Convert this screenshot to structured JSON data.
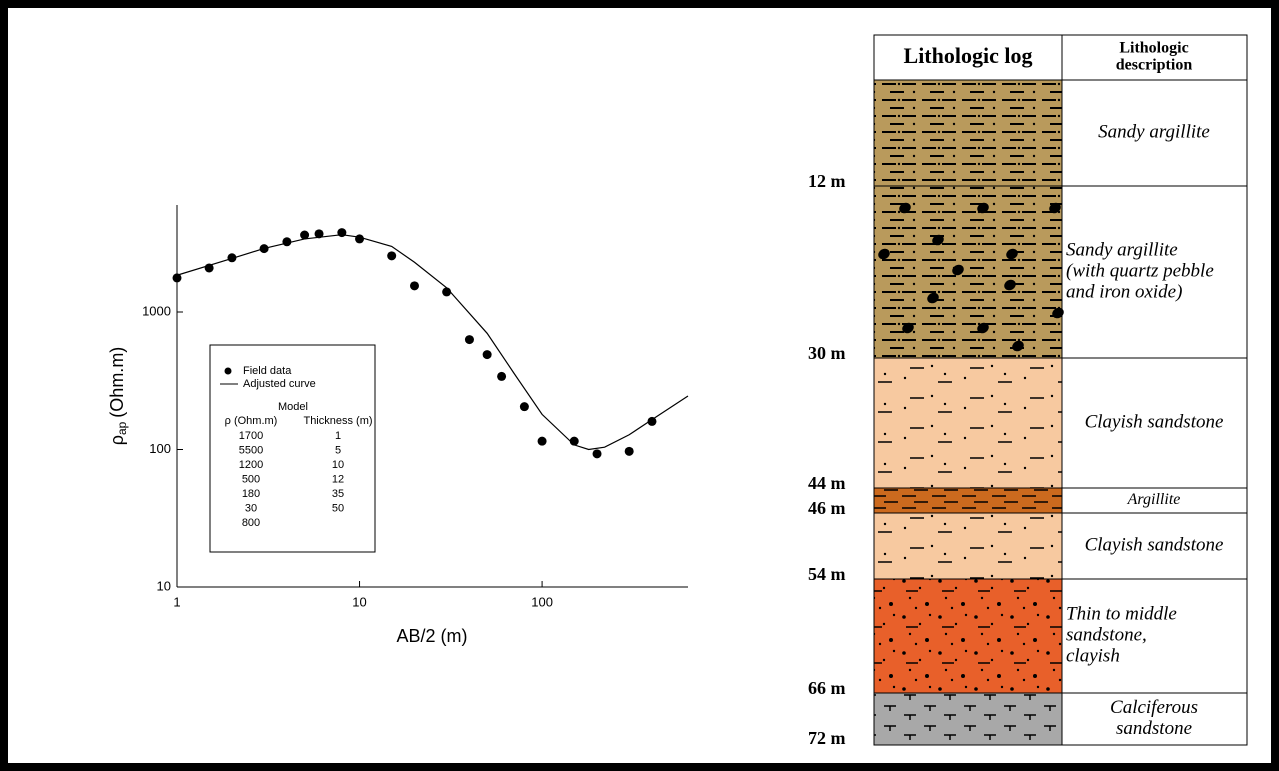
{
  "chart_data": {
    "type": "scatter",
    "x_label": "AB/2 (m)",
    "y_label": {
      "symbol": "ρ",
      "subscript": "ap",
      "unit": "(Ohm.m)"
    },
    "xscale": "log",
    "yscale": "log",
    "xlim": [
      1,
      630
    ],
    "ylim": [
      10,
      6000
    ],
    "xticks": [
      1,
      10,
      100
    ],
    "yticks": [
      10,
      100,
      1000
    ],
    "series": [
      {
        "name": "Field data",
        "type": "scatter",
        "color": "#000000",
        "x": [
          1,
          1.5,
          2,
          3,
          4,
          5,
          6,
          8,
          10,
          15,
          20,
          30,
          40,
          50,
          60,
          80,
          100,
          150,
          200,
          300,
          400
        ],
        "values": [
          1770,
          2090,
          2480,
          2890,
          3240,
          3630,
          3700,
          3780,
          3400,
          2560,
          1550,
          1400,
          630,
          490,
          340,
          205,
          115,
          115,
          93,
          97,
          160
        ]
      },
      {
        "name": "Adjusted curve",
        "type": "line",
        "color": "#000000",
        "x": [
          1,
          2,
          3,
          5,
          8,
          10,
          15,
          20,
          30,
          50,
          70,
          100,
          150,
          180,
          220,
          300,
          400,
          630
        ],
        "values": [
          1850,
          2450,
          2900,
          3400,
          3650,
          3500,
          3000,
          2300,
          1500,
          700,
          360,
          180,
          108,
          100,
          104,
          128,
          165,
          245
        ]
      }
    ],
    "model": {
      "title": "Model",
      "columns": [
        "ρ (Ohm.m)",
        "Thickness (m)"
      ],
      "rows": [
        [
          "1700",
          "1"
        ],
        [
          "5500",
          "5"
        ],
        [
          "1200",
          "10"
        ],
        [
          "500",
          "12"
        ],
        [
          "180",
          "35"
        ],
        [
          "30",
          "50"
        ],
        [
          "800",
          null
        ]
      ]
    }
  },
  "log": {
    "headers": {
      "log": "Lithologic log",
      "description": [
        "Lithologic",
        "description"
      ]
    },
    "layers": [
      {
        "depth": "12 m",
        "description": [
          "Sandy argillite"
        ],
        "color": "#b99a5c"
      },
      {
        "depth": "30 m",
        "description": [
          "Sandy argillite",
          "(with quartz pebble",
          "and iron oxide)"
        ],
        "color": "#b99a5c"
      },
      {
        "depth": "44 m",
        "description": [
          "Clayish sandstone"
        ],
        "color": "#f7c9a0"
      },
      {
        "depth": "46 m",
        "description": [
          "Argillite"
        ],
        "color": "#cc6a1e"
      },
      {
        "depth": "54 m",
        "description": [
          "Clayish sandstone"
        ],
        "color": "#f7c9a0"
      },
      {
        "depth": "66 m",
        "description": [
          "Thin to middle",
          "sandstone,",
          "clayish"
        ],
        "color": "#e8602a"
      },
      {
        "depth": "72 m",
        "description": [
          "Calciferous",
          "sandstone"
        ],
        "color": "#a8a8a8"
      }
    ]
  }
}
